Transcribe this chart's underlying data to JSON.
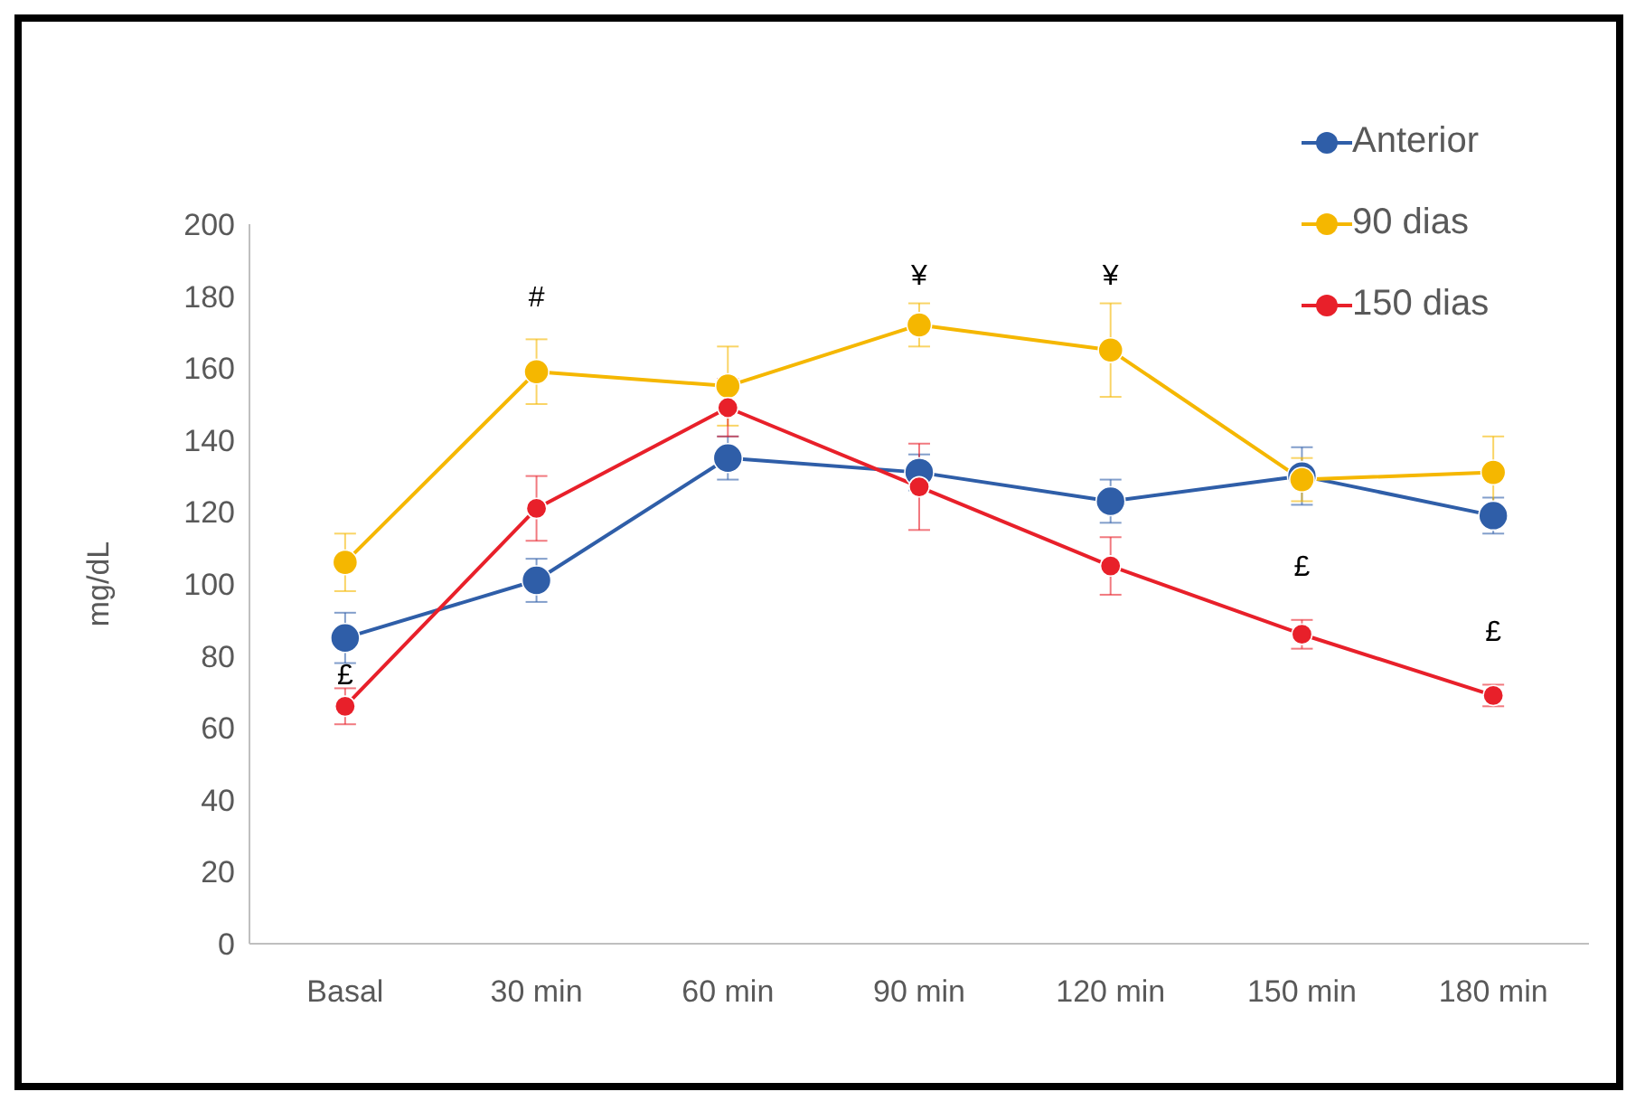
{
  "chart_data": {
    "type": "line",
    "ylabel": "mg/dL",
    "categories": [
      "Basal",
      "30 min",
      "60 min",
      "90 min",
      "120 min",
      "150 min",
      "180 min"
    ],
    "series": [
      {
        "name": "Anterior",
        "color": "#2f5ea8",
        "values": [
          85,
          101,
          135,
          131,
          123,
          130,
          119
        ],
        "errors": [
          7,
          6,
          6,
          5,
          6,
          8,
          5
        ]
      },
      {
        "name": "90 dias",
        "color": "#f5b700",
        "values": [
          106,
          159,
          155,
          172,
          165,
          129,
          131
        ],
        "errors": [
          8,
          9,
          11,
          6,
          13,
          6,
          10
        ]
      },
      {
        "name": "150 dias",
        "color": "#e8202a",
        "values": [
          66,
          121,
          149,
          127,
          105,
          86,
          69
        ],
        "errors": [
          5,
          9,
          8,
          12,
          8,
          4,
          3
        ]
      }
    ],
    "ylim": [
      0,
      200
    ],
    "yticks": [
      0,
      20,
      40,
      60,
      80,
      100,
      120,
      140,
      160,
      180,
      200
    ],
    "grid": false,
    "legend": "top right",
    "marker": "circle",
    "line_style": "solid",
    "annotations": [
      "#",
      "¥",
      "¥",
      "£",
      "£",
      "£"
    ]
  }
}
